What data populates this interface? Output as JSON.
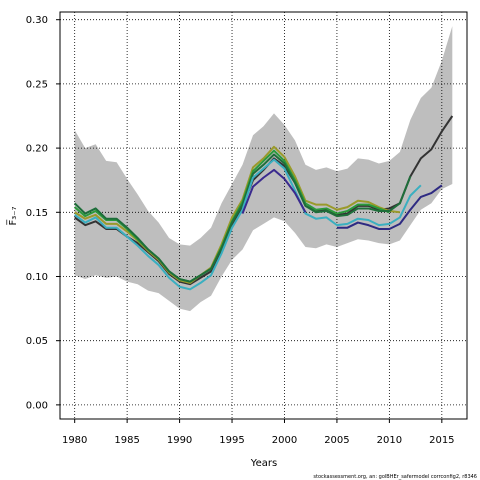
{
  "chart_data": {
    "type": "line",
    "title": "",
    "xlabel": "Years",
    "ylabel": "F̅₃₋₇",
    "xlim": [
      1978.6,
      2017.4
    ],
    "ylim": [
      -0.011,
      0.306
    ],
    "xticks": [
      1980,
      1985,
      1990,
      1995,
      2000,
      2005,
      2010,
      2015
    ],
    "yticks": [
      0.0,
      0.05,
      0.1,
      0.15,
      0.2,
      0.25,
      0.3
    ],
    "xtick_labels": [
      "1980",
      "1985",
      "1990",
      "1995",
      "2000",
      "2005",
      "2010",
      "2015"
    ],
    "ytick_labels": [
      "0.00",
      "0.05",
      "0.10",
      "0.15",
      "0.20",
      "0.25",
      "0.30"
    ],
    "grid": true,
    "footer": "stockassessment.org, an: golBHEr_safermodel corrconfig2, r8346",
    "band": {
      "color": "#bebebe",
      "x": [
        1980,
        1981,
        1982,
        1983,
        1984,
        1985,
        1986,
        1987,
        1988,
        1989,
        1990,
        1991,
        1992,
        1993,
        1994,
        1995,
        1996,
        1997,
        1998,
        1999,
        2000,
        2001,
        2002,
        2003,
        2004,
        2005,
        2006,
        2007,
        2008,
        2009,
        2010,
        2011,
        2012,
        2013,
        2014,
        2015,
        2016
      ],
      "upper": [
        0.214,
        0.2,
        0.203,
        0.19,
        0.189,
        0.176,
        0.164,
        0.151,
        0.142,
        0.13,
        0.125,
        0.124,
        0.13,
        0.138,
        0.157,
        0.172,
        0.187,
        0.21,
        0.217,
        0.227,
        0.218,
        0.206,
        0.187,
        0.183,
        0.185,
        0.182,
        0.184,
        0.192,
        0.191,
        0.188,
        0.19,
        0.197,
        0.222,
        0.239,
        0.247,
        0.268,
        0.295
      ],
      "lower": [
        0.101,
        0.098,
        0.101,
        0.099,
        0.1,
        0.096,
        0.094,
        0.089,
        0.087,
        0.081,
        0.075,
        0.073,
        0.08,
        0.085,
        0.1,
        0.113,
        0.121,
        0.136,
        0.141,
        0.146,
        0.143,
        0.134,
        0.123,
        0.122,
        0.125,
        0.123,
        0.126,
        0.129,
        0.128,
        0.126,
        0.125,
        0.128,
        0.14,
        0.152,
        0.157,
        0.168,
        0.172
      ]
    },
    "series": [
      {
        "color": "#333333",
        "width": 2,
        "x": [
          1980,
          1981,
          1982,
          1983,
          1984,
          1985,
          1986,
          1987,
          1988,
          1989,
          1990,
          1991,
          1992,
          1993,
          1994,
          1995,
          1996,
          1997,
          1998,
          1999,
          2000,
          2001,
          2002,
          2003,
          2004,
          2005,
          2006,
          2007,
          2008,
          2009,
          2010,
          2011,
          2012,
          2013,
          2014,
          2015,
          2016
        ],
        "values": [
          0.146,
          0.14,
          0.143,
          0.137,
          0.137,
          0.131,
          0.126,
          0.119,
          0.112,
          0.102,
          0.096,
          0.094,
          0.099,
          0.104,
          0.121,
          0.14,
          0.155,
          0.175,
          0.183,
          0.192,
          0.186,
          0.173,
          0.155,
          0.151,
          0.152,
          0.148,
          0.149,
          0.155,
          0.155,
          0.152,
          0.153,
          0.157,
          0.178,
          0.192,
          0.199,
          0.213,
          0.225
        ]
      },
      {
        "color": "#9a9a2a",
        "width": 2,
        "x": [
          1980,
          1981,
          1982,
          1983,
          1984,
          1985,
          1986,
          1987,
          1988,
          1989,
          1990,
          1991,
          1992,
          1993,
          1994,
          1995,
          1996,
          1997,
          1998,
          1999,
          2000,
          2001,
          2002,
          2003,
          2004,
          2005,
          2006,
          2007,
          2008,
          2009,
          2010,
          2011
        ],
        "values": [
          0.15,
          0.145,
          0.148,
          0.141,
          0.141,
          0.135,
          0.128,
          0.12,
          0.113,
          0.103,
          0.097,
          0.095,
          0.101,
          0.107,
          0.125,
          0.146,
          0.16,
          0.185,
          0.192,
          0.201,
          0.193,
          0.178,
          0.159,
          0.156,
          0.156,
          0.152,
          0.154,
          0.159,
          0.158,
          0.154,
          0.151,
          0.15
        ]
      },
      {
        "color": "#2a9a3c",
        "width": 2,
        "x": [
          1980,
          1981,
          1982,
          1983,
          1984,
          1985,
          1986,
          1987,
          1988,
          1989,
          1990,
          1991,
          1992,
          1993,
          1994,
          1995,
          1996,
          1997,
          1998,
          1999,
          2000,
          2001,
          2002,
          2003,
          2004,
          2005,
          2006,
          2007,
          2008,
          2009,
          2010
        ],
        "values": [
          0.154,
          0.147,
          0.151,
          0.144,
          0.144,
          0.137,
          0.129,
          0.121,
          0.114,
          0.104,
          0.098,
          0.096,
          0.101,
          0.106,
          0.123,
          0.143,
          0.158,
          0.182,
          0.19,
          0.198,
          0.19,
          0.175,
          0.157,
          0.152,
          0.153,
          0.149,
          0.151,
          0.156,
          0.156,
          0.153,
          0.15
        ]
      },
      {
        "color": "#1e6e3a",
        "width": 2,
        "x": [
          1980,
          1981,
          1982,
          1983,
          1984,
          1985,
          1986,
          1987,
          1988,
          1989,
          1990,
          1991,
          1992,
          1993,
          1994,
          1995,
          1996,
          1997,
          1998,
          1999,
          2000,
          2001,
          2002,
          2003,
          2004,
          2005,
          2006,
          2007,
          2008,
          2009,
          2010,
          2011,
          2012
        ],
        "values": [
          0.157,
          0.149,
          0.153,
          0.145,
          0.145,
          0.138,
          0.13,
          0.121,
          0.114,
          0.104,
          0.098,
          0.096,
          0.101,
          0.106,
          0.122,
          0.142,
          0.156,
          0.18,
          0.187,
          0.195,
          0.188,
          0.173,
          0.155,
          0.15,
          0.151,
          0.147,
          0.148,
          0.153,
          0.153,
          0.151,
          0.151,
          0.157,
          0.178
        ]
      },
      {
        "color": "#3aafc0",
        "width": 2,
        "x": [
          1980,
          1981,
          1982,
          1983,
          1984,
          1985,
          1986,
          1987,
          1988,
          1989,
          1990,
          1991,
          1992,
          1993,
          1994,
          1995,
          1996,
          1997,
          1998,
          1999,
          2000,
          2001,
          2002,
          2003,
          2004,
          2005,
          2006,
          2007,
          2008,
          2009,
          2010,
          2011,
          2012,
          2013
        ],
        "values": [
          0.148,
          0.142,
          0.146,
          0.138,
          0.138,
          0.131,
          0.124,
          0.116,
          0.109,
          0.099,
          0.092,
          0.09,
          0.095,
          0.101,
          0.118,
          0.138,
          0.152,
          0.177,
          0.184,
          0.191,
          0.184,
          0.167,
          0.149,
          0.145,
          0.146,
          0.14,
          0.141,
          0.145,
          0.144,
          0.14,
          0.141,
          0.146,
          0.163,
          0.171
        ]
      },
      {
        "color": "#2e2a82",
        "width": 2,
        "x": [
          2005,
          2006,
          2007,
          2008,
          2009,
          2010,
          2011,
          2012,
          2013,
          2014,
          2015
        ],
        "values": [
          0.138,
          0.138,
          0.142,
          0.14,
          0.137,
          0.137,
          0.141,
          0.152,
          0.162,
          0.165,
          0.171
        ]
      },
      {
        "color": "#3a2a8e",
        "width": 2,
        "x": [
          1996,
          1997,
          1998,
          1999,
          2000,
          2001,
          2002
        ],
        "values": [
          0.149,
          0.17,
          0.177,
          0.183,
          0.176,
          0.165,
          0.15
        ]
      }
    ]
  }
}
